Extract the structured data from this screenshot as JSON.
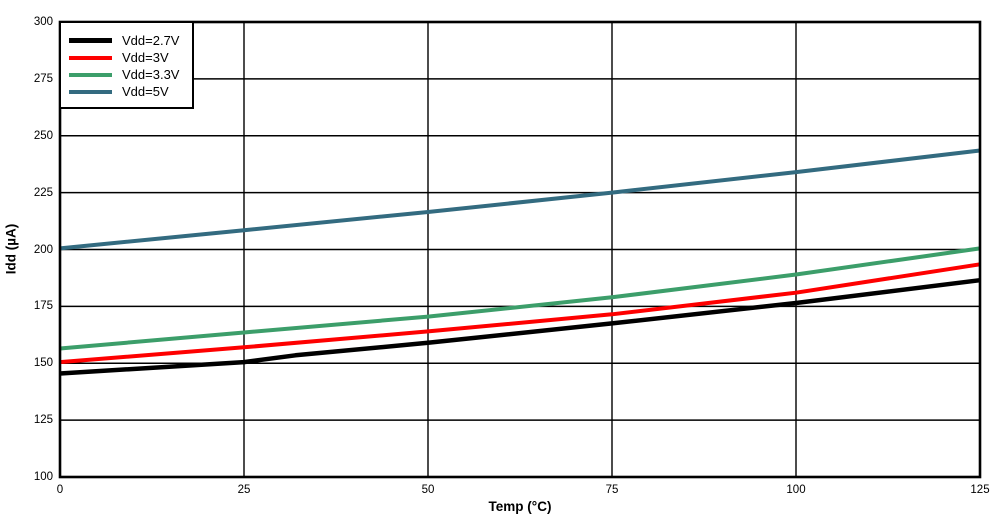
{
  "figure": {
    "background": "#ffffff",
    "grid_color": "#000000",
    "border_color": "#000000"
  },
  "axes": {
    "x": {
      "title": "Temp (°C)",
      "ticks": [
        0,
        25,
        50,
        75,
        100,
        125
      ]
    },
    "y": {
      "title": "Idd (µA)",
      "ticks": [
        100,
        125,
        150,
        175,
        200,
        225,
        250,
        275,
        300
      ]
    }
  },
  "chart_data": {
    "type": "line",
    "title": "",
    "xlabel": "Temp (°C)",
    "ylabel": "Idd (µA)",
    "xlim": [
      0,
      125
    ],
    "ylim": [
      100,
      300
    ],
    "xticks": [
      0,
      25,
      50,
      75,
      100,
      125
    ],
    "yticks": [
      100,
      125,
      150,
      175,
      200,
      225,
      250,
      275,
      300
    ],
    "grid": true,
    "legend_position": "top-left",
    "series": [
      {
        "name": "Vdd=2.7V",
        "color": "#000000",
        "points": [
          [
            0,
            145.5
          ],
          [
            25,
            150.5
          ],
          [
            32,
            153.5
          ],
          [
            50,
            159
          ],
          [
            75,
            167.5
          ],
          [
            100,
            176.5
          ],
          [
            125,
            186.5
          ]
        ]
      },
      {
        "name": "Vdd=3V",
        "color": "#fe0000",
        "points": [
          [
            0,
            150.5
          ],
          [
            25,
            157
          ],
          [
            50,
            164
          ],
          [
            75,
            171.5
          ],
          [
            100,
            181
          ],
          [
            125,
            193.5
          ]
        ]
      },
      {
        "name": "Vdd=3.3V",
        "color": "#3c9e6a",
        "points": [
          [
            0,
            156.5
          ],
          [
            25,
            163.5
          ],
          [
            50,
            170.5
          ],
          [
            75,
            179
          ],
          [
            100,
            189
          ],
          [
            125,
            200.5
          ]
        ]
      },
      {
        "name": "Vdd=5V",
        "color": "#336b80",
        "points": [
          [
            0,
            200.5
          ],
          [
            25,
            208.5
          ],
          [
            50,
            216.5
          ],
          [
            75,
            225
          ],
          [
            100,
            234
          ],
          [
            125,
            243.5
          ]
        ]
      }
    ]
  }
}
